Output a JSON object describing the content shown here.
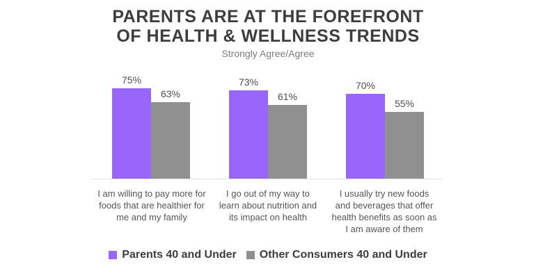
{
  "title_lines": [
    "PARENTS ARE AT THE FOREFRONT",
    "OF HEALTH & WELLNESS TRENDS"
  ],
  "subtitle": "Strongly Agree/Agree",
  "colors": {
    "parents_purple": "#9966fb",
    "other_consumers_gray": "#909090",
    "title_text": "#3d3d3d",
    "axis_line": "#e0e0e0"
  },
  "chart_data": {
    "type": "bar",
    "title": "PARENTS ARE AT THE FOREFRONT OF HEALTH & WELLNESS TRENDS",
    "subtitle": "Strongly Agree/Agree",
    "categories": [
      "I am willing to pay more for\nfoods that are healthier for\nme and my family",
      "I go out of my way to\nlearn about nutrition and\nits impact on health",
      "I usually try new foods\nand beverages that offer\nhealth benefits as soon as\nI am aware of them"
    ],
    "series": [
      {
        "name": "Parents 40 and Under",
        "color": "#9966fb",
        "values": [
          75,
          73,
          70
        ]
      },
      {
        "name": "Other Consumers 40 and Under",
        "color": "#909090",
        "values": [
          63,
          61,
          55
        ]
      }
    ],
    "value_suffix": "%",
    "data_labels": [
      [
        "75%",
        "73%",
        "70%"
      ],
      [
        "63%",
        "61%",
        "55%"
      ]
    ],
    "ylim": [
      0,
      80
    ],
    "xlabel": "",
    "ylabel": "",
    "grid": false,
    "legend_position": "bottom"
  }
}
